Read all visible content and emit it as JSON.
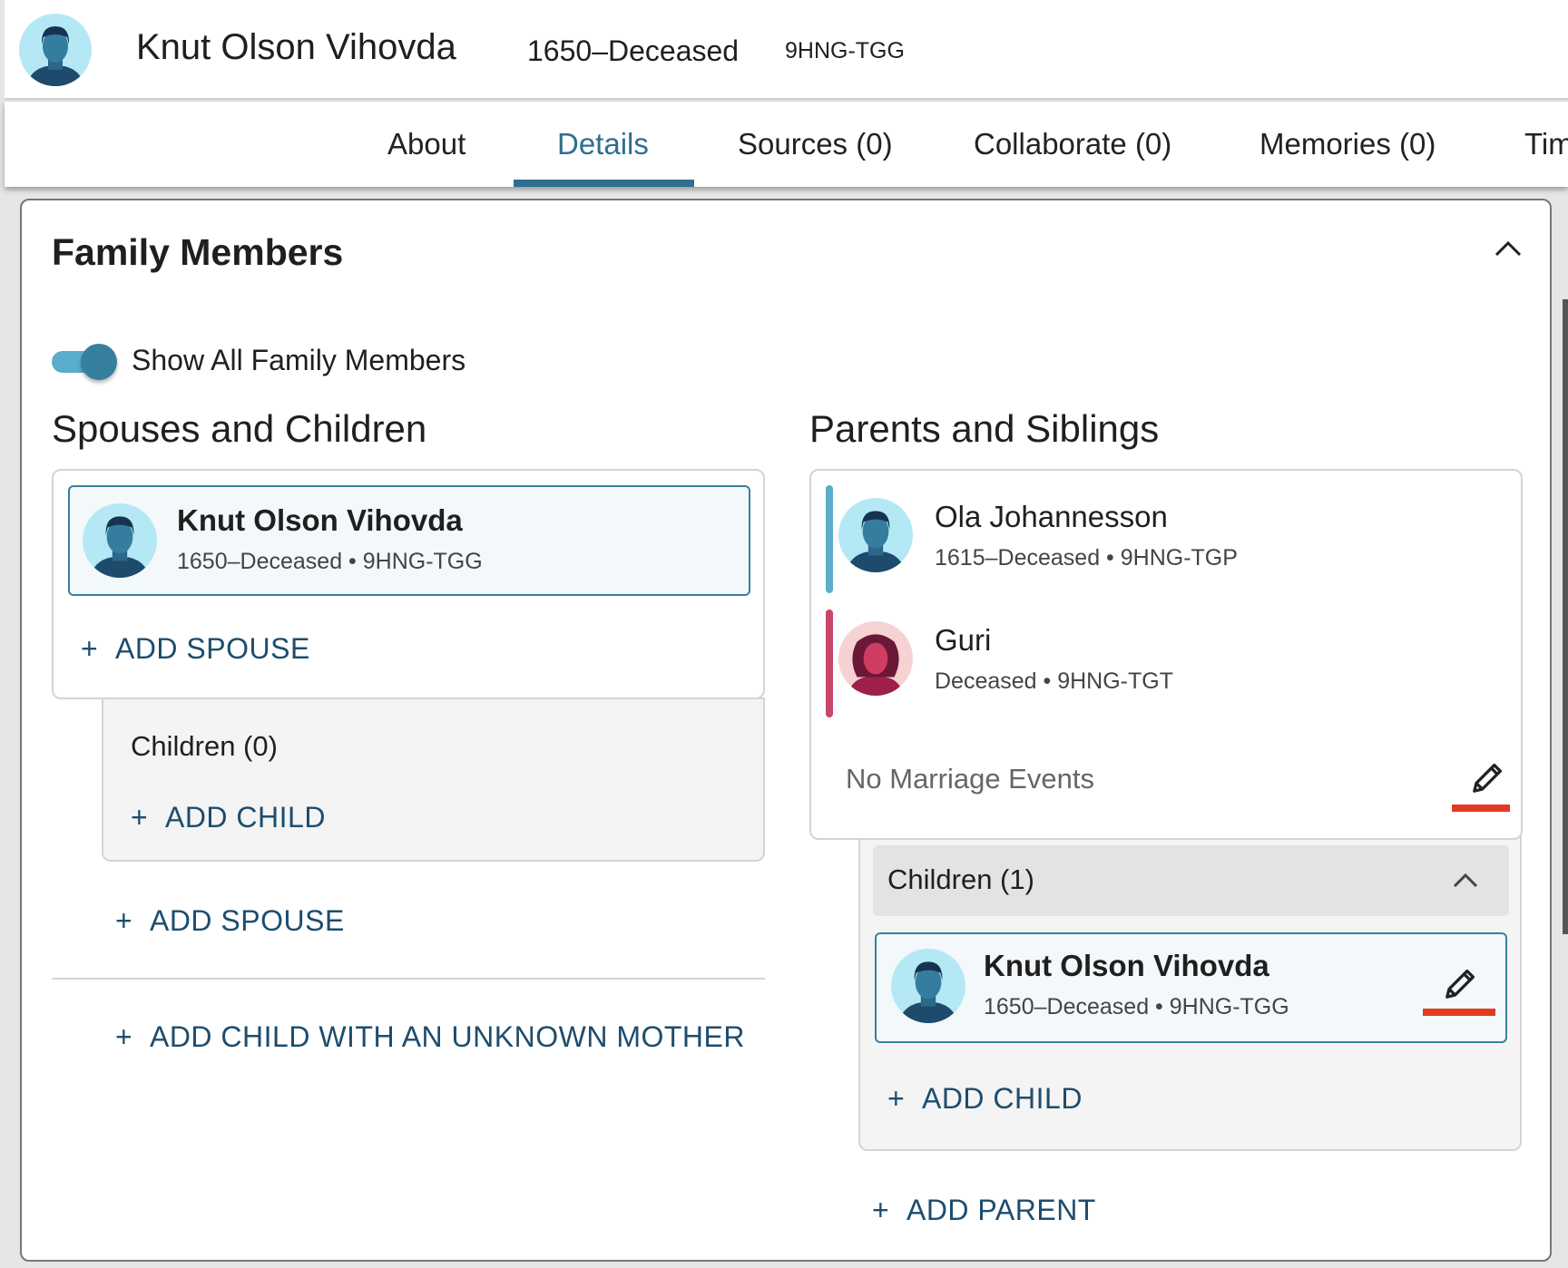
{
  "header": {
    "name": "Knut Olson Vihovda",
    "lifespan": "1650–Deceased",
    "pid": "9HNG-TGG"
  },
  "tabs": [
    {
      "label": "About"
    },
    {
      "label": "Details"
    },
    {
      "label": "Sources (0)"
    },
    {
      "label": "Collaborate (0)"
    },
    {
      "label": "Memories (0)"
    },
    {
      "label": "Tim"
    }
  ],
  "active_tab": "Details",
  "family": {
    "title": "Family Members",
    "toggle_label": "Show All Family Members",
    "toggle_on": true,
    "spouses": {
      "title": "Spouses and Children",
      "person": {
        "name": "Knut Olson Vihovda",
        "meta": "1650–Deceased • 9HNG-TGG"
      },
      "add_spouse": "ADD SPOUSE",
      "children_label": "Children (0)",
      "add_child": "ADD CHILD",
      "add_spouse2": "ADD SPOUSE",
      "add_child_unknown": "ADD CHILD WITH AN UNKNOWN MOTHER"
    },
    "parents": {
      "title": "Parents and Siblings",
      "father": {
        "name": "Ola Johannesson",
        "meta": "1615–Deceased • 9HNG-TGP"
      },
      "mother": {
        "name": "Guri",
        "meta": "Deceased • 9HNG-TGT"
      },
      "marriage": "No Marriage Events",
      "children_label": "Children (1)",
      "child": {
        "name": "Knut Olson Vihovda",
        "meta": "1650–Deceased • 9HNG-TGG"
      },
      "add_child": "ADD CHILD",
      "add_parent": "ADD PARENT"
    }
  },
  "colors": {
    "accent": "#2f6e8f",
    "link": "#1d4d6e",
    "male": "#5aaecb",
    "female": "#c9456b",
    "highlight": "#e23b22"
  }
}
